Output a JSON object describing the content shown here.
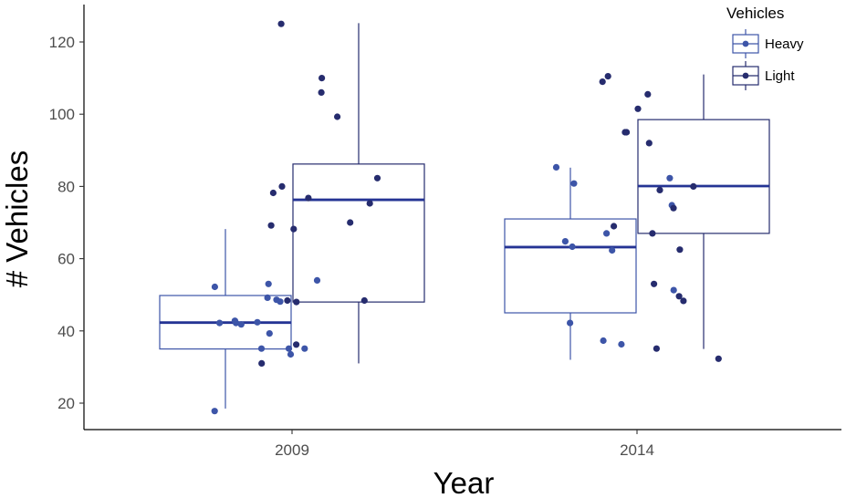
{
  "chart_data": {
    "type": "box",
    "xlabel": "Year",
    "ylabel": "# Vehicles",
    "categories": [
      "2009",
      "2014"
    ],
    "ylim": [
      13,
      130
    ],
    "yticks": [
      20,
      40,
      60,
      80,
      100,
      120
    ],
    "grid": false,
    "legend": {
      "title": "Vehicles",
      "position": "top-right",
      "entries": [
        "Heavy",
        "Light"
      ]
    },
    "colors": {
      "Heavy": "#3d55a8",
      "Light": "#262c6e",
      "median": "#253494"
    },
    "series": [
      {
        "name": "Heavy",
        "boxes": [
          {
            "category": "2009",
            "min": 18.5,
            "q1": 35,
            "median": 42.3,
            "q3": 49.8,
            "max": 68.2
          },
          {
            "category": "2014",
            "min": 32,
            "q1": 45,
            "median": 63.2,
            "q3": 71,
            "max": 85.2
          }
        ],
        "points": [
          {
            "category": "2009",
            "values": [
              49.2,
              48.6,
              42.2,
              42.2,
              35.1,
              39.3,
              52.2,
              54,
              48.1,
              42.4,
              41.8,
              35.1,
              35.1,
              17.8,
              53,
              42.8,
              33.5
            ]
          },
          {
            "category": "2014",
            "values": [
              42.2,
              36.3,
              62.3,
              63.3,
              85.3,
              82.3,
              51.3,
              64.8,
              67,
              74.8,
              80.8,
              37.3
            ]
          }
        ]
      },
      {
        "name": "Light",
        "boxes": [
          {
            "category": "2009",
            "min": 31,
            "q1": 48,
            "median": 76.3,
            "q3": 86.2,
            "max": 125.2
          },
          {
            "category": "2014",
            "min": 35,
            "q1": 67,
            "median": 80.1,
            "q3": 98.5,
            "max": 111
          }
        ],
        "points": [
          {
            "category": "2009",
            "values": [
              110,
              99.3,
              48.4,
              78.2,
              82.3,
              76.8,
              125,
              106,
              68.2,
              69.2,
              70,
              48,
              36.2,
              31,
              75.3,
              80,
              48.4
            ]
          },
          {
            "category": "2014",
            "values": [
              35.1,
              95,
              74,
              105.5,
              80,
              62.5,
              69,
              95,
              53,
              110.5,
              109,
              92,
              48.3,
              49.6,
              32.3,
              101.5,
              67,
              79
            ]
          }
        ]
      }
    ]
  }
}
